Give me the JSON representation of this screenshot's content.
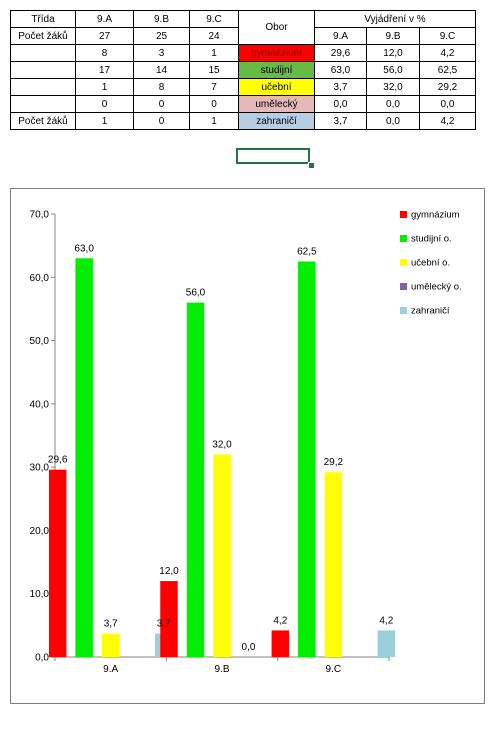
{
  "table": {
    "head_trida": "Třída",
    "head_classes": [
      "9.A",
      "9.B",
      "9.C"
    ],
    "head_obor": "Obor",
    "head_vyjadreni": "Vyjádření v %",
    "head_pct_classes": [
      "9.A",
      "9.B",
      "9.C"
    ],
    "pocet_label": "Počet žáků",
    "pocet_values": [
      "27",
      "25",
      "24"
    ],
    "rows": [
      {
        "counts": [
          "8",
          "3",
          "1"
        ],
        "obor": "gymnázium",
        "pct": [
          "29,6",
          "12,0",
          "4,2"
        ]
      },
      {
        "counts": [
          "17",
          "14",
          "15"
        ],
        "obor": "studijní",
        "pct": [
          "63,0",
          "56,0",
          "62,5"
        ]
      },
      {
        "counts": [
          "1",
          "8",
          "7"
        ],
        "obor": "učební",
        "pct": [
          "3,7",
          "32,0",
          "29,2"
        ]
      },
      {
        "counts": [
          "0",
          "0",
          "0"
        ],
        "obor": "umělecký",
        "pct": [
          "0,0",
          "0,0",
          "0,0"
        ]
      },
      {
        "counts": [
          "1",
          "0",
          "1"
        ],
        "obor": "zahraničí",
        "pct": [
          "3,7",
          "0,0",
          "4,2"
        ]
      }
    ],
    "bottom_label": "Počet žáků",
    "obor_colors": [
      "#ff0000",
      "#66bb44",
      "#ffff00",
      "#e6b8b7",
      "#b8cce4"
    ]
  },
  "chart_data": {
    "type": "bar",
    "categories": [
      "9.A",
      "9.B",
      "9.C"
    ],
    "series": [
      {
        "name": "gymnázium",
        "color": "#ff0000",
        "values": [
          29.6,
          12.0,
          4.2
        ]
      },
      {
        "name": "studijní o.",
        "color": "#00ee00",
        "values": [
          63.0,
          56.0,
          62.5
        ]
      },
      {
        "name": "učební o.",
        "color": "#ffff00",
        "values": [
          3.7,
          32.0,
          29.2
        ]
      },
      {
        "name": "umělecký o.",
        "color": "#8064a2",
        "values": [
          0.0,
          0.0,
          0.0
        ]
      },
      {
        "name": "zahraničí",
        "color": "#9bcfdc",
        "values": [
          3.7,
          0.0,
          4.2
        ]
      }
    ],
    "data_labels": [
      [
        "29,6",
        "12,0",
        "4,2"
      ],
      [
        "63,0",
        "56,0",
        "62,5"
      ],
      [
        "3,7",
        "32,0",
        "29,2"
      ],
      [
        "",
        "0,0",
        ""
      ],
      [
        "3,7",
        "",
        "4,2"
      ]
    ],
    "yticks": [
      "0,0",
      "10,0",
      "20,0",
      "30,0",
      "40,0",
      "50,0",
      "60,0",
      "70,0"
    ],
    "ylim": [
      0,
      70
    ],
    "legend_position": "right",
    "grid": false
  }
}
